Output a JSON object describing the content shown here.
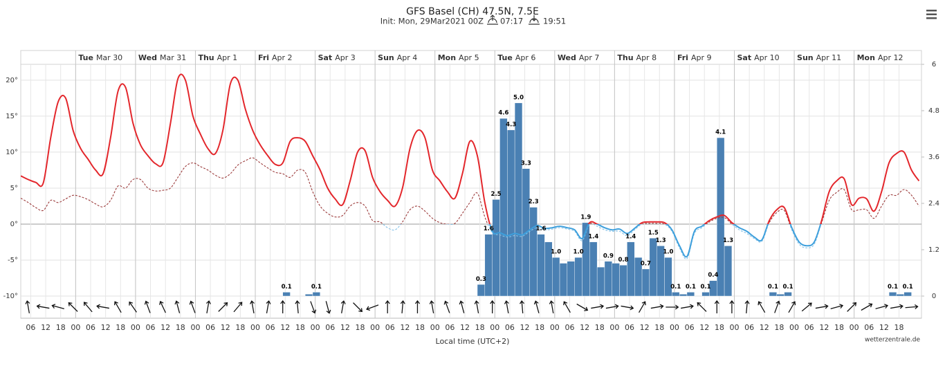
{
  "chart_data": {
    "type": "meteogram",
    "title": "GFS Basel (CH) 47.5N, 7.5E",
    "subtitle": "Init: Mon, 29Mar2021 00Z",
    "sunrise": "07:17",
    "sunset": "19:51",
    "xlabel": "Local time (UTC+2)",
    "credit": "wetterzentrale.de",
    "grid": true,
    "xlim": [
      2,
      363
    ],
    "xticks": [
      {
        "value": 6,
        "label": "06"
      },
      {
        "value": 12,
        "label": "12"
      },
      {
        "value": 18,
        "label": "18"
      },
      {
        "value": 24,
        "label": "00"
      },
      {
        "value": 30,
        "label": "06"
      },
      {
        "value": 36,
        "label": "12"
      },
      {
        "value": 42,
        "label": "18"
      },
      {
        "value": 48,
        "label": "00"
      },
      {
        "value": 54,
        "label": "06"
      },
      {
        "value": 60,
        "label": "12"
      },
      {
        "value": 66,
        "label": "18"
      },
      {
        "value": 72,
        "label": "00"
      },
      {
        "value": 78,
        "label": "06"
      },
      {
        "value": 84,
        "label": "12"
      },
      {
        "value": 90,
        "label": "18"
      },
      {
        "value": 96,
        "label": "00"
      },
      {
        "value": 102,
        "label": "06"
      },
      {
        "value": 108,
        "label": "12"
      },
      {
        "value": 114,
        "label": "18"
      },
      {
        "value": 120,
        "label": "00"
      },
      {
        "value": 126,
        "label": "06"
      },
      {
        "value": 132,
        "label": "12"
      },
      {
        "value": 138,
        "label": "18"
      },
      {
        "value": 144,
        "label": "00"
      },
      {
        "value": 150,
        "label": "06"
      },
      {
        "value": 156,
        "label": "12"
      },
      {
        "value": 162,
        "label": "18"
      },
      {
        "value": 168,
        "label": "00"
      },
      {
        "value": 174,
        "label": "06"
      },
      {
        "value": 180,
        "label": "12"
      },
      {
        "value": 186,
        "label": "18"
      },
      {
        "value": 192,
        "label": "00"
      },
      {
        "value": 198,
        "label": "06"
      },
      {
        "value": 204,
        "label": "12"
      },
      {
        "value": 210,
        "label": "18"
      },
      {
        "value": 216,
        "label": "00"
      },
      {
        "value": 222,
        "label": "06"
      },
      {
        "value": 228,
        "label": "12"
      },
      {
        "value": 234,
        "label": "18"
      },
      {
        "value": 240,
        "label": "00"
      },
      {
        "value": 246,
        "label": "06"
      },
      {
        "value": 252,
        "label": "12"
      },
      {
        "value": 258,
        "label": "18"
      },
      {
        "value": 264,
        "label": "00"
      },
      {
        "value": 270,
        "label": "06"
      },
      {
        "value": 276,
        "label": "12"
      },
      {
        "value": 282,
        "label": "18"
      },
      {
        "value": 288,
        "label": "00"
      },
      {
        "value": 294,
        "label": "06"
      },
      {
        "value": 300,
        "label": "12"
      },
      {
        "value": 306,
        "label": "18"
      },
      {
        "value": 312,
        "label": "00"
      },
      {
        "value": 318,
        "label": "06"
      },
      {
        "value": 324,
        "label": "12"
      },
      {
        "value": 330,
        "label": "18"
      },
      {
        "value": 336,
        "label": "00"
      },
      {
        "value": 342,
        "label": "06"
      },
      {
        "value": 348,
        "label": "12"
      },
      {
        "value": 354,
        "label": "18"
      }
    ],
    "days": [
      {
        "value": 24,
        "weekday": "Tue",
        "date": "Mar 30"
      },
      {
        "value": 48,
        "weekday": "Wed",
        "date": "Mar 31"
      },
      {
        "value": 72,
        "weekday": "Thu",
        "date": "Apr 1"
      },
      {
        "value": 96,
        "weekday": "Fri",
        "date": "Apr 2"
      },
      {
        "value": 120,
        "weekday": "Sat",
        "date": "Apr 3"
      },
      {
        "value": 144,
        "weekday": "Sun",
        "date": "Apr 4"
      },
      {
        "value": 168,
        "weekday": "Mon",
        "date": "Apr 5"
      },
      {
        "value": 192,
        "weekday": "Tue",
        "date": "Apr 6"
      },
      {
        "value": 216,
        "weekday": "Wed",
        "date": "Apr 7"
      },
      {
        "value": 240,
        "weekday": "Thu",
        "date": "Apr 8"
      },
      {
        "value": 264,
        "weekday": "Fri",
        "date": "Apr 9"
      },
      {
        "value": 288,
        "weekday": "Sat",
        "date": "Apr 10"
      },
      {
        "value": 312,
        "weekday": "Sun",
        "date": "Apr 11"
      },
      {
        "value": 336,
        "weekday": "Mon",
        "date": "Apr 12"
      }
    ],
    "ylim": [
      -10,
      22.2
    ],
    "yticks": [
      {
        "value": -10,
        "label": "-10°"
      },
      {
        "value": -5,
        "label": "-5°"
      },
      {
        "value": 0,
        "label": "0°"
      },
      {
        "value": 5,
        "label": "5°"
      },
      {
        "value": 10,
        "label": "10°"
      },
      {
        "value": 15,
        "label": "15°"
      },
      {
        "value": 20,
        "label": "20°"
      }
    ],
    "y2lim": [
      0,
      6
    ],
    "y2ticks": [
      0,
      1.2,
      2.4,
      3.6,
      4.8,
      6
    ],
    "x": [
      2,
      5,
      8,
      11,
      14,
      17,
      20,
      23,
      26,
      29,
      32,
      35,
      38,
      41,
      44,
      47,
      50,
      53,
      56,
      59,
      62,
      65,
      68,
      71,
      74,
      77,
      80,
      83,
      86,
      89,
      92,
      95,
      98,
      101,
      104,
      107,
      110,
      113,
      116,
      119,
      122,
      125,
      128,
      131,
      134,
      137,
      140,
      143,
      146,
      149,
      152,
      155,
      158,
      161,
      164,
      167,
      170,
      173,
      176,
      179,
      182,
      185,
      188,
      191,
      194,
      197,
      200,
      203,
      206,
      209,
      212,
      215,
      218,
      221,
      224,
      227,
      230,
      233,
      236,
      239,
      242,
      245,
      248,
      251,
      254,
      257,
      260,
      263,
      266,
      269,
      272,
      275,
      278,
      281,
      284,
      287,
      290,
      293,
      296,
      299,
      302,
      305,
      308,
      311,
      314,
      317,
      320,
      323,
      326,
      329,
      332,
      335,
      338,
      341,
      344,
      347,
      350,
      353,
      356,
      359,
      362
    ],
    "temperature": {
      "color": "#e3262b",
      "color_below_zero": "#3d9fdc",
      "values": [
        6.7,
        6.2,
        5.8,
        5.7,
        12,
        17,
        17.5,
        13,
        10.5,
        9,
        7.5,
        7,
        12,
        18.5,
        19,
        14,
        11,
        9.5,
        8.4,
        8.5,
        14,
        20.2,
        20,
        15,
        12.5,
        10.5,
        9.8,
        13,
        19.5,
        20,
        16,
        13,
        11,
        9.5,
        8.3,
        8.5,
        11.5,
        12,
        11.5,
        9.5,
        7.5,
        5,
        3.5,
        2.7,
        6,
        10,
        10.2,
        6.5,
        4.5,
        3.3,
        2.5,
        5,
        10.5,
        13,
        12,
        7.5,
        6,
        4.5,
        3.6,
        7,
        11.5,
        9.5,
        3,
        -1,
        -1.2,
        -1.6,
        -1.3,
        -1.5,
        -0.8,
        -0.2,
        -0.6,
        -0.5,
        -0.3,
        -0.5,
        -0.8,
        -2,
        0.2,
        0,
        -0.5,
        -0.8,
        -0.7,
        -1.3,
        -0.6,
        0.2,
        0.3,
        0.3,
        0.2,
        -0.8,
        -3,
        -4.5,
        -1,
        -0.3,
        0.5,
        1,
        1.2,
        0.2,
        -0.5,
        -1,
        -1.8,
        -2.2,
        0.5,
        2,
        2.3,
        -0.5,
        -2.5,
        -3,
        -2.5,
        0.5,
        4.5,
        6,
        6.3,
        2.7,
        3.6,
        3.5,
        1.8,
        4.5,
        8.5,
        9.8,
        10,
        7.5,
        6
      ]
    },
    "dew_point": {
      "color": "#9b3a3a",
      "color_below_zero": "#84c2e8",
      "values": [
        3.6,
        3,
        2.3,
        1.9,
        3.3,
        3,
        3.5,
        4,
        3.8,
        3.4,
        2.8,
        2.4,
        3.3,
        5.3,
        5,
        6.2,
        6.2,
        5,
        4.6,
        4.7,
        5,
        6.5,
        8,
        8.5,
        8,
        7.5,
        6.8,
        6.4,
        7,
        8.2,
        8.8,
        9.2,
        8.5,
        7.8,
        7.2,
        7,
        6.5,
        7.5,
        7.2,
        4.5,
        2.5,
        1.5,
        1,
        1.2,
        2.5,
        3,
        2.5,
        0.5,
        0.3,
        -0.5,
        -0.8,
        0.3,
        2,
        2.5,
        1.8,
        0.8,
        0.2,
        0,
        0.1,
        1.5,
        3,
        4.3,
        1,
        -1.2,
        -1.5,
        -1.8,
        -1.6,
        -1.7,
        -1,
        -0.5,
        -0.8,
        -0.7,
        -0.5,
        -0.7,
        -1,
        -2.3,
        0,
        -0.3,
        -0.8,
        -1,
        -1,
        -1.6,
        -0.8,
        0,
        0.1,
        0.1,
        0,
        -1,
        -3.3,
        -4.8,
        -1.3,
        -0.5,
        0.3,
        0.8,
        0.9,
        0,
        -0.8,
        -1.3,
        -2,
        -2.4,
        0.2,
        1.6,
        1.9,
        -0.8,
        -2.8,
        -3.3,
        -2.8,
        0.2,
        3.3,
        4.4,
        4.8,
        2,
        2,
        2,
        0.8,
        2.5,
        4,
        4,
        4.8,
        4,
        2.5
      ]
    },
    "precipitation": {
      "axis": "y2",
      "color": "#4a80b3",
      "x": [
        110,
        119,
        122,
        188,
        191,
        194,
        197,
        200,
        203,
        206,
        209,
        212,
        215,
        218,
        221,
        224,
        227,
        230,
        233,
        236,
        239,
        242,
        245,
        248,
        251,
        254,
        257,
        260,
        263,
        266,
        269,
        272,
        278,
        281,
        284,
        287,
        305,
        308,
        311,
        353,
        356,
        359
      ],
      "values": [
        0.1,
        0.05,
        0.1,
        0.3,
        1.6,
        2.5,
        4.6,
        4.3,
        5.0,
        3.3,
        2.3,
        1.6,
        1.4,
        1.0,
        0.85,
        0.9,
        1.0,
        1.9,
        1.4,
        0.75,
        0.9,
        0.85,
        0.8,
        1.4,
        1.0,
        0.7,
        1.5,
        1.3,
        1.0,
        0.1,
        0.05,
        0.1,
        0.1,
        0.4,
        4.1,
        1.3,
        0.1,
        0.05,
        0.1,
        0.1,
        0.05,
        0.1
      ],
      "value_labels": [
        "0.1",
        null,
        "0.1",
        "0.3",
        "1.6",
        "2.5",
        "4.6",
        "4.3",
        "5.0",
        "3.3",
        "2.3",
        "1.6",
        null,
        "1.0",
        null,
        null,
        "1.0",
        "1.9",
        "1.4",
        null,
        "0.9",
        null,
        "0.8",
        "1.4",
        null,
        "0.7",
        "1.5",
        "1.3",
        "1.0",
        "0.1",
        null,
        "0.1",
        "0.1",
        "0.4",
        "4.1",
        "1.3",
        "0.1",
        null,
        "0.1",
        "0.1",
        null,
        "0.1"
      ]
    },
    "wind": {
      "color": "#111111",
      "x": [
        5,
        11,
        17,
        23,
        29,
        35,
        41,
        47,
        53,
        59,
        65,
        71,
        77,
        83,
        89,
        95,
        101,
        107,
        113,
        119,
        125,
        131,
        137,
        143,
        149,
        155,
        161,
        167,
        173,
        179,
        185,
        191,
        197,
        203,
        209,
        215,
        221,
        227,
        233,
        239,
        245,
        251,
        257,
        263,
        269,
        275,
        281,
        287,
        293,
        299,
        305,
        311,
        317,
        323,
        329,
        335,
        341,
        347,
        353,
        359
      ],
      "values": [
        170,
        100,
        105,
        135,
        140,
        100,
        150,
        145,
        160,
        155,
        165,
        160,
        190,
        225,
        220,
        170,
        190,
        180,
        175,
        340,
        345,
        190,
        315,
        70,
        180,
        185,
        180,
        170,
        160,
        165,
        170,
        180,
        170,
        175,
        165,
        170,
        150,
        300,
        260,
        260,
        280,
        210,
        260,
        270,
        260,
        135,
        180,
        180,
        185,
        150,
        200,
        210,
        230,
        260,
        255,
        225,
        240,
        255,
        260,
        265
      ]
    }
  }
}
